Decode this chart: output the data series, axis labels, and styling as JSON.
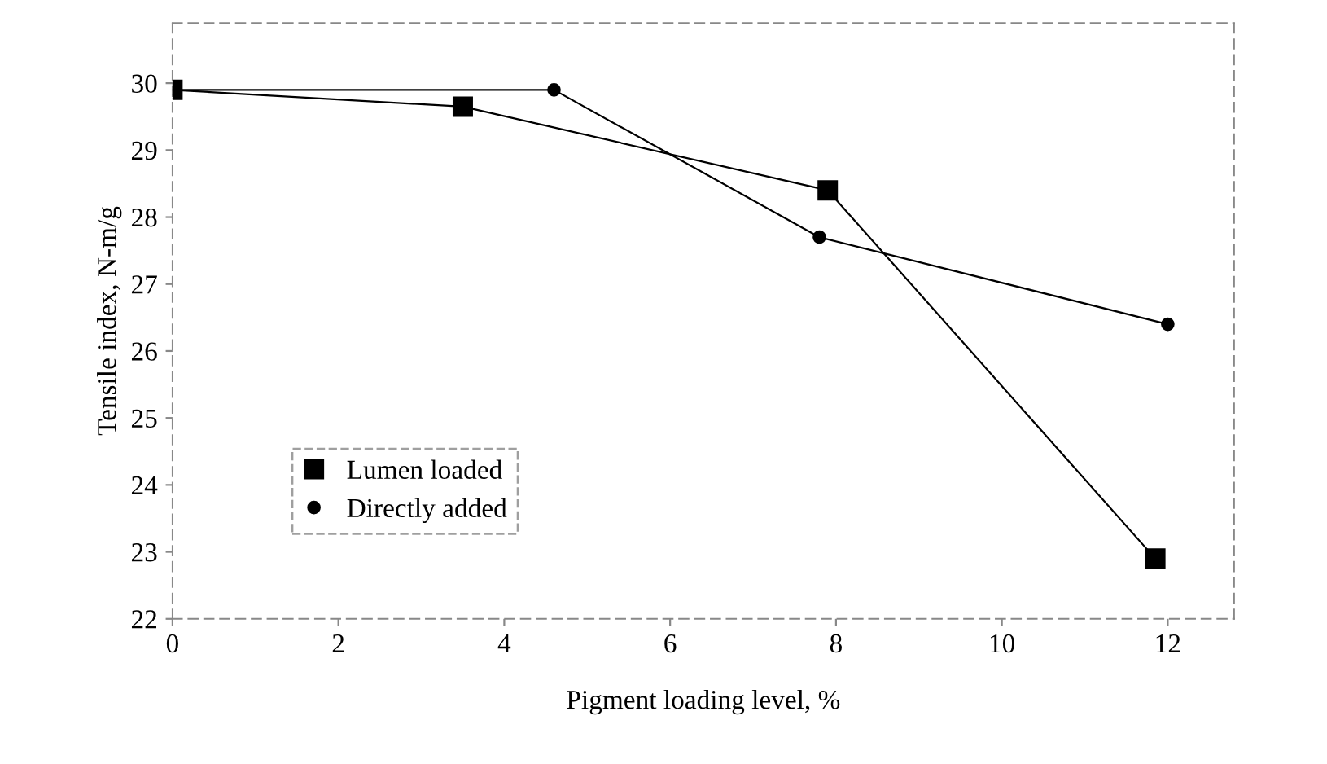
{
  "chart_data": {
    "type": "line",
    "xlabel": "Pigment loading level, %",
    "ylabel": "Tensile index, N-m/g",
    "series": [
      {
        "name": "Lumen loaded",
        "color": "#000000",
        "marker": "square",
        "x": [
          0,
          3.5,
          7.9,
          11.85
        ],
        "values": [
          29.9,
          29.65,
          28.4,
          22.9
        ]
      },
      {
        "name": "Directly added",
        "color": "#000000",
        "marker": "circle",
        "x": [
          0,
          4.6,
          7.8,
          12
        ],
        "values": [
          29.9,
          29.9,
          27.7,
          26.4
        ]
      }
    ],
    "xlim": [
      0,
      12.8
    ],
    "ylim": [
      22,
      30.9
    ],
    "xticks": [
      0,
      2,
      4,
      6,
      8,
      10,
      12
    ],
    "yticks": [
      22,
      23,
      24,
      25,
      26,
      27,
      28,
      29,
      30
    ],
    "grid": false,
    "legend": "lower left",
    "line_style": "solid"
  }
}
